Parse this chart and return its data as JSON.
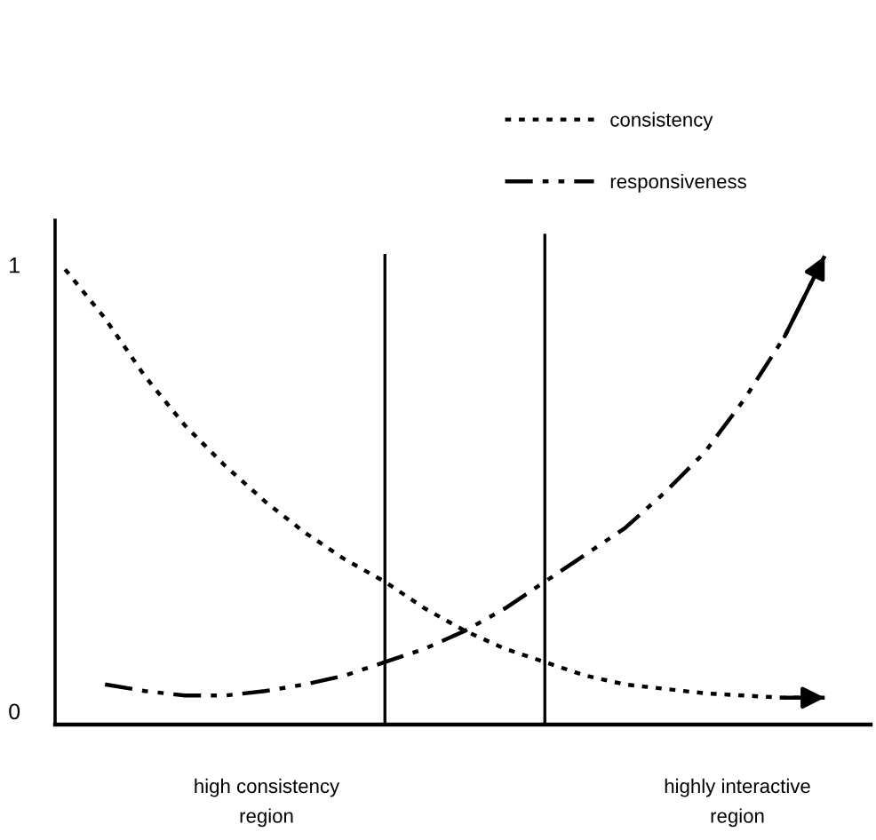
{
  "chart_data": {
    "type": "line",
    "categories": [
      null,
      null,
      null,
      null,
      null,
      null,
      null,
      null,
      null,
      null,
      null,
      null,
      null,
      null,
      null,
      null,
      null,
      null,
      null,
      null
    ],
    "ylim": [
      -0.03,
      1.1
    ],
    "yticks": [
      0,
      1
    ],
    "tick_labels": "y",
    "legend": "top right",
    "marker": "none",
    "series": [
      {
        "name": "consistency",
        "color": "#000000",
        "line_style": "dotted",
        "values": [
          0.99,
          0.88,
          0.75,
          0.64,
          0.55,
          0.47,
          0.4,
          0.34,
          0.29,
          0.23,
          0.18,
          0.14,
          0.11,
          0.08,
          0.06,
          0.05,
          0.04,
          0.035,
          0.03,
          0.03
        ]
      },
      {
        "name": "responsiveness",
        "color": "#000000",
        "line_style": "dashdot",
        "values": [
          null,
          0.06,
          0.045,
          0.035,
          0.035,
          0.045,
          0.06,
          0.08,
          0.11,
          0.14,
          0.18,
          0.23,
          0.29,
          0.35,
          0.41,
          0.49,
          0.58,
          0.7,
          0.84,
          1.02
        ]
      }
    ],
    "annotations": [
      "high consistency\nregion",
      "highly interactive\nregion"
    ]
  }
}
